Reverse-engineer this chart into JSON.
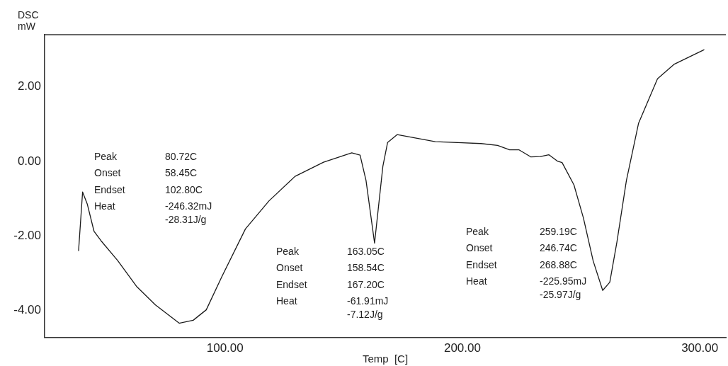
{
  "chart_data": {
    "type": "line",
    "xlabel": "Temp  [C]",
    "ylabel": "DSC\nmW",
    "x": [
      38.3,
      40.0,
      42.0,
      44.8,
      47.8,
      54.8,
      62.7,
      70.7,
      80.7,
      86.6,
      92.1,
      98.6,
      108.6,
      118.5,
      129.5,
      141.5,
      153.4,
      156.9,
      159.4,
      163.0,
      166.5,
      168.5,
      172.5,
      188.6,
      199.7,
      207.8,
      214.8,
      219.9,
      223.9,
      228.9,
      232.9,
      236.4,
      240.0,
      242.0,
      247.0,
      251.0,
      255.1,
      259.1,
      262.1,
      265.1,
      269.1,
      274.2,
      282.2,
      289.3,
      301.9
    ],
    "series": [
      {
        "color": "#1a1a1a",
        "values": [
          -2.4,
          -0.82,
          -1.15,
          -1.87,
          -2.13,
          -2.66,
          -3.35,
          -3.85,
          -4.34,
          -4.26,
          -3.98,
          -3.1,
          -1.81,
          -1.06,
          -0.4,
          -0.02,
          0.23,
          0.17,
          -0.51,
          -2.19,
          -0.13,
          0.51,
          0.72,
          0.53,
          0.5,
          0.48,
          0.43,
          0.31,
          0.31,
          0.12,
          0.13,
          0.18,
          0.01,
          -0.03,
          -0.63,
          -1.52,
          -2.67,
          -3.46,
          -3.24,
          -2.16,
          -0.51,
          1.02,
          2.22,
          2.61,
          3.0
        ]
      }
    ],
    "xlim": [
      24,
      311
    ],
    "ylim": [
      -4.72,
      3.4
    ],
    "xticks": [
      {
        "value": 100,
        "label": "100.00"
      },
      {
        "value": 200,
        "label": "200.00"
      },
      {
        "value": 300,
        "label": "300.00"
      }
    ],
    "yticks": [
      {
        "value": -4,
        "label": "-4.00"
      },
      {
        "value": -2,
        "label": "-2.00"
      },
      {
        "value": 0,
        "label": "0.00"
      },
      {
        "value": 2,
        "label": "2.00"
      }
    ],
    "grid": false,
    "legend": false,
    "marker": "none",
    "line_style": "solid",
    "annotations": [
      "Peak",
      "80.72C",
      "Onset",
      "58.45C",
      "Endset",
      "102.80C",
      "Heat",
      "-246.32mJ",
      "-28.31J/g",
      "Peak",
      "163.05C",
      "Onset",
      "158.54C",
      "Endset",
      "167.20C",
      "Heat",
      "-61.91mJ",
      "-7.12J/g",
      "Peak",
      "259.19C",
      "Onset",
      "246.74C",
      "Endset",
      "268.88C",
      "Heat",
      "-225.95mJ",
      "-25.97J/g"
    ]
  }
}
